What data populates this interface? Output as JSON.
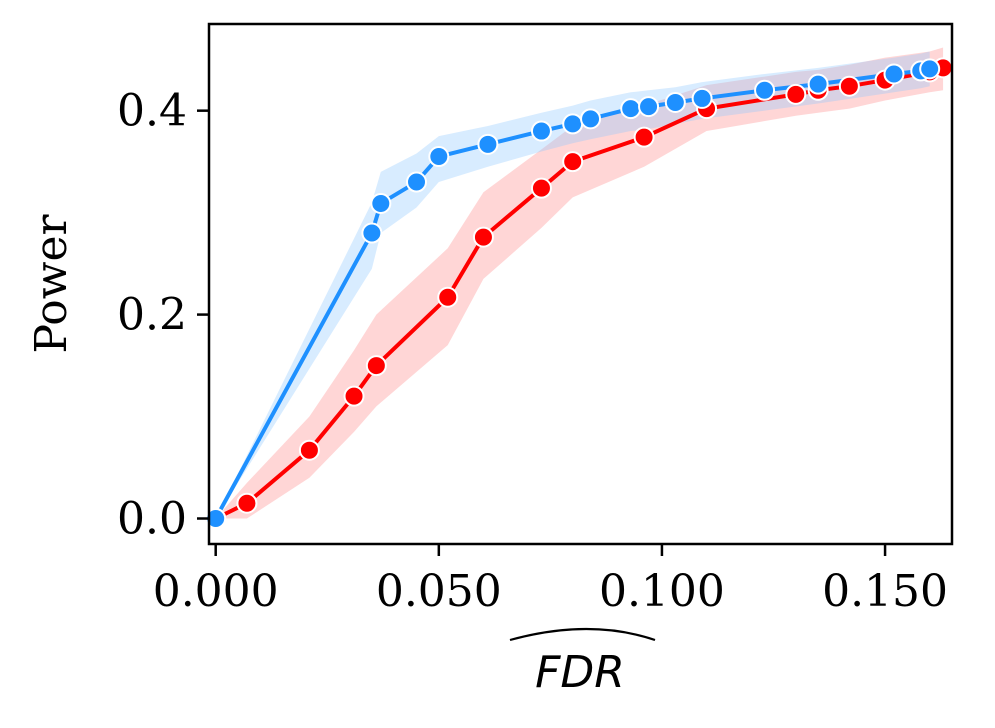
{
  "chart_data": {
    "type": "line",
    "title": "",
    "xlabel": "FDR",
    "xlabel_hat": true,
    "ylabel": "Power",
    "xlim": [
      -0.0015,
      0.165
    ],
    "ylim": [
      -0.025,
      0.485
    ],
    "xticks": [
      0.0,
      0.05,
      0.1,
      0.15
    ],
    "xtick_labels": [
      "0.000",
      "0.050",
      "0.100",
      "0.150"
    ],
    "yticks": [
      0.0,
      0.2,
      0.4
    ],
    "ytick_labels": [
      "0.0",
      "0.2",
      "0.4"
    ],
    "grid": false,
    "legend": null,
    "series": [
      {
        "name": "red",
        "color": "#ff0000",
        "band_color": "#ff8a8a",
        "x": [
          0.0,
          0.007,
          0.021,
          0.031,
          0.036,
          0.052,
          0.06,
          0.073,
          0.08,
          0.096,
          0.11,
          0.13,
          0.135,
          0.142,
          0.15,
          0.16,
          0.163
        ],
        "y": [
          0.0,
          0.015,
          0.067,
          0.12,
          0.15,
          0.217,
          0.276,
          0.324,
          0.35,
          0.374,
          0.402,
          0.416,
          0.42,
          0.424,
          0.43,
          0.438,
          0.442
        ],
        "lower": [
          0.0,
          0.0,
          0.04,
          0.085,
          0.11,
          0.17,
          0.235,
          0.285,
          0.315,
          0.345,
          0.38,
          0.395,
          0.398,
          0.402,
          0.41,
          0.418,
          0.42
        ],
        "upper": [
          0.0,
          0.035,
          0.1,
          0.165,
          0.2,
          0.265,
          0.32,
          0.362,
          0.385,
          0.405,
          0.425,
          0.438,
          0.44,
          0.445,
          0.452,
          0.458,
          0.462
        ]
      },
      {
        "name": "blue",
        "color": "#1e90ff",
        "band_color": "#8fc8ff",
        "x": [
          0.0,
          0.035,
          0.037,
          0.045,
          0.05,
          0.061,
          0.073,
          0.08,
          0.084,
          0.093,
          0.097,
          0.103,
          0.109,
          0.123,
          0.135,
          0.152,
          0.158,
          0.16
        ],
        "y": [
          0.0,
          0.28,
          0.309,
          0.33,
          0.355,
          0.367,
          0.38,
          0.387,
          0.392,
          0.402,
          0.404,
          0.408,
          0.412,
          0.42,
          0.426,
          0.436,
          0.439,
          0.441
        ],
        "lower": [
          0.0,
          0.245,
          0.28,
          0.305,
          0.33,
          0.345,
          0.36,
          0.368,
          0.372,
          0.38,
          0.382,
          0.387,
          0.392,
          0.4,
          0.407,
          0.418,
          0.422,
          0.424
        ],
        "upper": [
          0.0,
          0.31,
          0.34,
          0.358,
          0.375,
          0.385,
          0.398,
          0.405,
          0.41,
          0.418,
          0.42,
          0.423,
          0.428,
          0.436,
          0.442,
          0.452,
          0.456,
          0.458
        ]
      }
    ]
  }
}
